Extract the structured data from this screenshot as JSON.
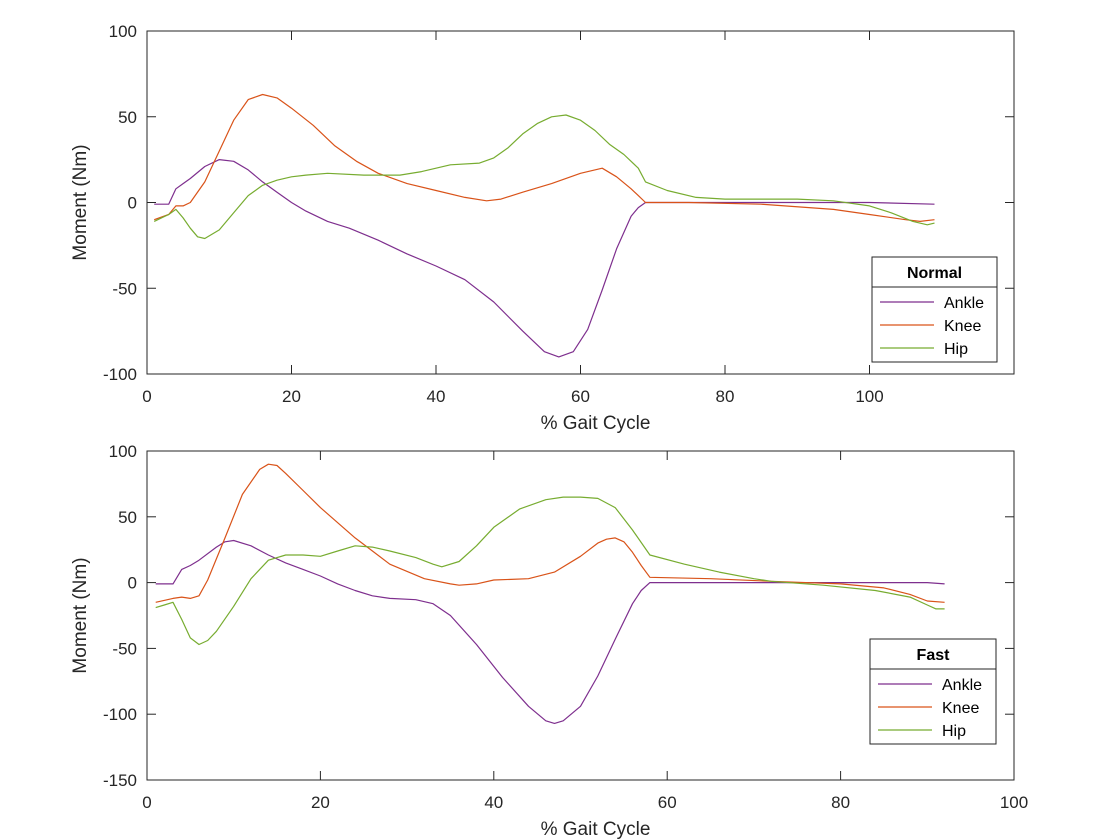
{
  "chart_data": [
    {
      "type": "line",
      "title": "",
      "xlabel": "% Gait Cycle",
      "ylabel": "Moment (Nm)",
      "xlim": [
        0,
        120
      ],
      "ylim": [
        -100,
        100
      ],
      "xticks": [
        0,
        20,
        40,
        60,
        80,
        100
      ],
      "yticks": [
        -100,
        -50,
        0,
        50,
        100
      ],
      "grid": false,
      "legend": {
        "title": "Normal",
        "placement": "bottom-right"
      },
      "series": [
        {
          "name": "Ankle",
          "color": "#7e2f8e",
          "x": [
            1,
            2,
            3,
            4,
            5,
            6,
            8,
            10,
            12,
            14,
            16,
            18,
            20,
            22,
            25,
            28,
            32,
            36,
            40,
            44,
            48,
            52,
            55,
            57,
            59,
            61,
            63,
            65,
            67,
            68,
            69,
            72,
            80,
            90,
            100,
            109
          ],
          "y": [
            -1,
            -1,
            -1,
            8,
            11,
            14,
            21,
            25,
            24,
            19,
            12,
            6,
            0,
            -5,
            -11,
            -15,
            -22,
            -30,
            -37,
            -45,
            -58,
            -75,
            -87,
            -90,
            -87,
            -74,
            -51,
            -27,
            -8,
            -3,
            0,
            0,
            0,
            0,
            0,
            -1
          ]
        },
        {
          "name": "Knee",
          "color": "#d95319",
          "x": [
            1,
            3,
            4,
            5,
            6,
            8,
            10,
            12,
            14,
            16,
            18,
            20,
            23,
            26,
            29,
            32,
            36,
            40,
            44,
            47,
            49,
            52,
            56,
            60,
            63,
            65,
            67,
            68,
            69,
            75,
            85,
            95,
            100,
            105,
            107,
            109
          ],
          "y": [
            -10,
            -7,
            -2,
            -2,
            0,
            12,
            30,
            48,
            60,
            63,
            61,
            55,
            45,
            33,
            24,
            17,
            11,
            7,
            3,
            1,
            2,
            6,
            11,
            17,
            20,
            15,
            8,
            4,
            0,
            0,
            -1,
            -4,
            -7,
            -10,
            -11,
            -10
          ],
          "label_note": ""
        },
        {
          "name": "Hip",
          "color": "#77ac30",
          "x": [
            1,
            2,
            3,
            4,
            5,
            6,
            7,
            8,
            10,
            12,
            14,
            16,
            18,
            20,
            22,
            25,
            30,
            35,
            38,
            42,
            46,
            48,
            50,
            52,
            54,
            56,
            58,
            60,
            62,
            64,
            66,
            68,
            69,
            72,
            76,
            80,
            85,
            90,
            95,
            100,
            103,
            106,
            108,
            109
          ],
          "y": [
            -11,
            -9,
            -7,
            -4,
            -9,
            -15,
            -20,
            -21,
            -16,
            -6,
            4,
            10,
            13,
            15,
            16,
            17,
            16,
            16,
            18,
            22,
            23,
            26,
            32,
            40,
            46,
            50,
            51,
            48,
            42,
            34,
            28,
            20,
            12,
            7,
            3,
            2,
            2,
            2,
            1,
            -2,
            -6,
            -11,
            -13,
            -12
          ]
        }
      ]
    },
    {
      "type": "line",
      "title": "",
      "xlabel": "% Gait Cycle",
      "ylabel": "Moment (Nm)",
      "xlim": [
        0,
        100
      ],
      "ylim": [
        -150,
        100
      ],
      "xticks": [
        0,
        20,
        40,
        60,
        80,
        100
      ],
      "yticks": [
        -150,
        -100,
        -50,
        0,
        50,
        100
      ],
      "grid": false,
      "legend": {
        "title": "Fast",
        "placement": "bottom-right"
      },
      "series": [
        {
          "name": "Ankle",
          "color": "#7e2f8e",
          "x": [
            1,
            2,
            3,
            4,
            5,
            6,
            8,
            9,
            10,
            12,
            14,
            16,
            18,
            20,
            22,
            24,
            26,
            28,
            31,
            33,
            35,
            38,
            41,
            44,
            46,
            47,
            48,
            50,
            52,
            54,
            56,
            57,
            58,
            60,
            70,
            80,
            90,
            92
          ],
          "y": [
            -1,
            -1,
            -1,
            10,
            13,
            17,
            27,
            31,
            32,
            28,
            21,
            15,
            10,
            5,
            -1,
            -6,
            -10,
            -12,
            -13,
            -16,
            -25,
            -47,
            -72,
            -94,
            -105,
            -107,
            -105,
            -94,
            -71,
            -43,
            -16,
            -6,
            0,
            0,
            0,
            0,
            0,
            -1
          ]
        },
        {
          "name": "Knee",
          "color": "#d95319",
          "x": [
            1,
            3,
            4,
            5,
            6,
            7,
            9,
            11,
            13,
            14,
            15,
            16,
            18,
            20,
            24,
            28,
            32,
            35,
            36,
            38,
            40,
            44,
            47,
            50,
            52,
            53,
            54,
            55,
            56,
            57,
            58,
            65,
            72,
            80,
            85,
            88,
            90,
            92
          ],
          "y": [
            -15,
            -12,
            -11,
            -12,
            -10,
            2,
            34,
            67,
            86,
            90,
            89,
            83,
            70,
            57,
            34,
            14,
            3,
            -1,
            -2,
            -1,
            2,
            3,
            8,
            20,
            30,
            33,
            34,
            31,
            23,
            13,
            4,
            3,
            1,
            -1,
            -4,
            -9,
            -14,
            -15
          ]
        },
        {
          "name": "Hip",
          "color": "#77ac30",
          "x": [
            1,
            2,
            3,
            4,
            5,
            6,
            7,
            8,
            10,
            12,
            14,
            16,
            18,
            20,
            22,
            24,
            26,
            28,
            31,
            33,
            34,
            36,
            38,
            40,
            43,
            46,
            48,
            50,
            52,
            54,
            56,
            58,
            62,
            66,
            70,
            72,
            78,
            84,
            88,
            90,
            91,
            92
          ],
          "y": [
            -19,
            -17,
            -15,
            -28,
            -42,
            -47,
            -44,
            -37,
            -18,
            3,
            17,
            21,
            21,
            20,
            24,
            28,
            27,
            24,
            19,
            14,
            12,
            16,
            28,
            42,
            56,
            63,
            65,
            65,
            64,
            57,
            40,
            21,
            14,
            8,
            3,
            1,
            -2,
            -6,
            -11,
            -17,
            -20,
            -20
          ]
        }
      ]
    }
  ]
}
